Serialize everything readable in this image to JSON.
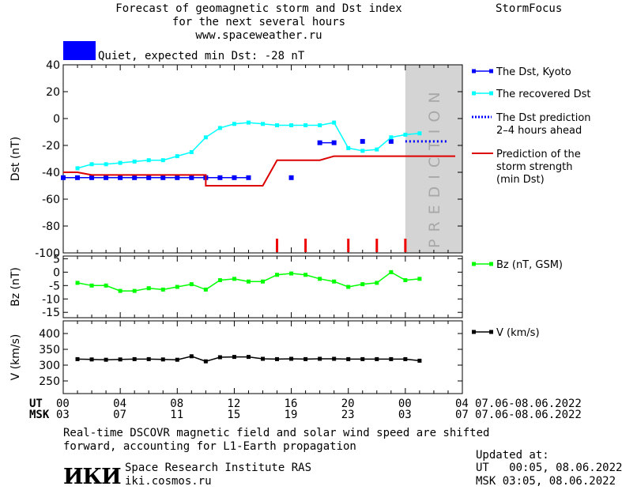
{
  "header": {
    "title_lines": [
      "Forecast of geomagnetic storm and Dst index",
      "for the next several hours",
      "www.spaceweather.ru"
    ],
    "brand": "StormFocus",
    "status_text": "Quiet, expected min Dst: -28 nT",
    "status_color": "#0000ff"
  },
  "footer": {
    "note_lines": [
      "Real-time DSCOVR magnetic field and solar wind speed are shifted",
      "forward, accounting for L1-Earth propagation"
    ],
    "institute": "Space Research Institute RAS",
    "site": "iki.cosmos.ru",
    "logo_text": "ИКИ",
    "updated_label": "Updated at:",
    "updated_ut": "UT   00:05, 08.06.2022",
    "updated_msk": "MSK 03:05, 08.06.2022"
  },
  "time_axis": {
    "ut_label": "UT",
    "msk_label": "MSK",
    "ut_ticks": [
      "00",
      "04",
      "08",
      "12",
      "16",
      "20",
      "00",
      "04"
    ],
    "msk_ticks": [
      "03",
      "07",
      "11",
      "15",
      "19",
      "23",
      "03",
      "07"
    ],
    "ut_range": "07.06-08.06.2022",
    "msk_range": "07.06-08.06.2022"
  },
  "chart_data": [
    {
      "type": "line",
      "ylabel": "Dst (nT)",
      "xlim": [
        0,
        28
      ],
      "ylim": [
        -100,
        40
      ],
      "yticks": [
        "40",
        "20",
        "0",
        "-20",
        "-40",
        "-60",
        "-80",
        "-100"
      ],
      "prediction_label": "PREDICTION",
      "prediction_range": [
        24,
        28
      ],
      "series": [
        {
          "name": "The Dst, Kyoto",
          "color": "#0000ff",
          "x": [
            0,
            1,
            2,
            3,
            4,
            5,
            6,
            7,
            8,
            9,
            10,
            11,
            12,
            13,
            16,
            18,
            19,
            21,
            23
          ],
          "y": [
            -44,
            -44,
            -44,
            -44,
            -44,
            -44,
            -44,
            -44,
            -44,
            -44,
            -44,
            -44,
            -44,
            -44,
            -44,
            -18,
            -18,
            -17,
            -17
          ]
        },
        {
          "name": "The recovered Dst",
          "color": "#00ffff",
          "x": [
            1,
            2,
            3,
            4,
            5,
            6,
            7,
            8,
            9,
            10,
            11,
            12,
            13,
            14,
            15,
            16,
            17,
            18,
            19,
            20,
            21,
            22,
            23,
            24,
            25
          ],
          "y": [
            -37,
            -34,
            -34,
            -33,
            -32,
            -31,
            -31,
            -28,
            -25,
            -14,
            -7,
            -4,
            -3,
            -4,
            -5,
            -5,
            -5,
            -5,
            -3,
            -22,
            -24,
            -23,
            -14,
            -12,
            -11
          ]
        },
        {
          "name": "The Dst prediction 2-4 hours ahead",
          "color": "#0000ff",
          "x": [
            24,
            27
          ],
          "y": [
            -17,
            -17
          ]
        },
        {
          "name": "Prediction of the storm strength (min Dst)",
          "color": "#dd0000",
          "x": [
            0,
            1,
            2,
            10,
            10,
            14,
            15,
            18,
            19,
            27.5
          ],
          "y": [
            -40,
            -40,
            -42,
            -42,
            -50,
            -50,
            -31,
            -31,
            -28,
            -28
          ]
        }
      ],
      "event_markers_x": [
        15,
        17,
        20,
        22,
        24
      ]
    },
    {
      "type": "line",
      "ylabel": "Bz (nT)",
      "xlim": [
        0,
        28
      ],
      "ylim": [
        -17,
        6
      ],
      "yticks": [
        "5",
        "0",
        "-5",
        "-10",
        "-15"
      ],
      "series": [
        {
          "name": "Bz (nT, GSM)",
          "color": "#00ff00",
          "x": [
            1,
            2,
            3,
            4,
            5,
            6,
            7,
            8,
            9,
            10,
            11,
            12,
            13,
            14,
            15,
            16,
            17,
            18,
            19,
            20,
            21,
            22,
            23,
            24,
            25
          ],
          "y": [
            -4,
            -5,
            -5,
            -7,
            -7,
            -6,
            -6.5,
            -5.5,
            -4.5,
            -6.5,
            -3,
            -2.5,
            -3.5,
            -3.5,
            -1,
            -0.5,
            -1,
            -2.5,
            -3.5,
            -5.5,
            -4.5,
            -4,
            0,
            -3,
            -2.5
          ]
        }
      ]
    },
    {
      "type": "line",
      "ylabel": "V (km/s)",
      "xlim": [
        0,
        28
      ],
      "ylim": [
        210,
        440
      ],
      "yticks": [
        "400",
        "350",
        "300",
        "250"
      ],
      "series": [
        {
          "name": "V (km/s)",
          "color": "#000000",
          "x": [
            1,
            2,
            3,
            4,
            5,
            6,
            7,
            8,
            9,
            10,
            11,
            12,
            13,
            14,
            15,
            16,
            17,
            18,
            19,
            20,
            21,
            22,
            23,
            24,
            25
          ],
          "y": [
            319,
            318,
            317,
            318,
            319,
            319,
            318,
            317,
            328,
            312,
            325,
            326,
            326,
            320,
            319,
            320,
            319,
            320,
            320,
            319,
            319,
            319,
            319,
            319,
            314
          ]
        }
      ]
    }
  ]
}
